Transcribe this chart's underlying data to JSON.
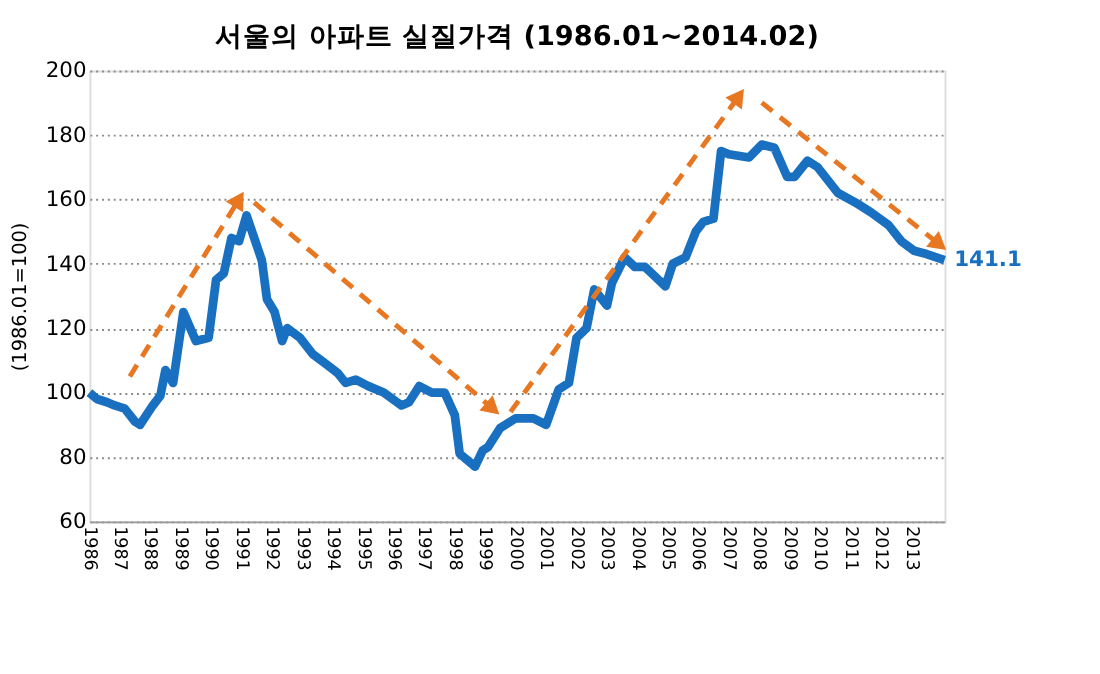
{
  "chart_data": {
    "type": "line",
    "title": "서울의 아파트 실질가격 (1986.01~2014.02)",
    "ylabel": "(1986.01=100)",
    "x": [
      "1986-01",
      "1986-04",
      "1986-08",
      "1986-11",
      "1987-03",
      "1987-07",
      "1987-09",
      "1988-02",
      "1988-05",
      "1988-07",
      "1988-10",
      "1989-02",
      "1989-07",
      "1989-12",
      "1990-03",
      "1990-06",
      "1990-09",
      "1990-12",
      "1991-03",
      "1991-06",
      "1991-09",
      "1991-11",
      "1992-02",
      "1992-05",
      "1992-07",
      "1992-12",
      "1993-05",
      "1993-10",
      "1994-03",
      "1994-06",
      "1994-10",
      "1995-03",
      "1995-09",
      "1996-04",
      "1996-07",
      "1996-11",
      "1997-04",
      "1997-09",
      "1998-01",
      "1998-03",
      "1998-06",
      "1998-09",
      "1998-12",
      "1999-02",
      "1999-07",
      "2000-01",
      "2000-08",
      "2001-01",
      "2001-06",
      "2001-10",
      "2002-01",
      "2002-05",
      "2002-08",
      "2003-01",
      "2003-03",
      "2003-08",
      "2003-12",
      "2004-04",
      "2004-08",
      "2004-12",
      "2005-03",
      "2005-08",
      "2005-12",
      "2006-03",
      "2006-07",
      "2006-10",
      "2007-01",
      "2007-09",
      "2008-02",
      "2008-07",
      "2008-12",
      "2009-03",
      "2009-08",
      "2009-12",
      "2010-08",
      "2011-03",
      "2011-09",
      "2012-04",
      "2012-09",
      "2013-02",
      "2013-07",
      "2014-02"
    ],
    "series": [
      {
        "color": "#1a70c0",
        "values": [
          100,
          98,
          97,
          96,
          95,
          91,
          90,
          96,
          99,
          107,
          103,
          125,
          116,
          117,
          135,
          137,
          148,
          147,
          155,
          148,
          141,
          129,
          125,
          116,
          120,
          117,
          112,
          109,
          106,
          103,
          104,
          102,
          100,
          96,
          97,
          102,
          100,
          100,
          93,
          81,
          79,
          77,
          82,
          83,
          89,
          92,
          92,
          90,
          101,
          103,
          117,
          120,
          132,
          127,
          134,
          142,
          139,
          139,
          136,
          133,
          140,
          142,
          150,
          153,
          154,
          175,
          174,
          173,
          177,
          176,
          167,
          167,
          172,
          170,
          162,
          159,
          156,
          152,
          147,
          144,
          143,
          141.1
        ],
        "value_labels": [
          null,
          null,
          null,
          null,
          null,
          null,
          null,
          null,
          null,
          null,
          null,
          null,
          null,
          null,
          null,
          null,
          null,
          null,
          null,
          null,
          null,
          null,
          null,
          null,
          null,
          null,
          null,
          null,
          null,
          null,
          null,
          null,
          null,
          null,
          null,
          null,
          null,
          null,
          null,
          null,
          null,
          null,
          null,
          null,
          null,
          null,
          null,
          null,
          null,
          null,
          null,
          null,
          null,
          null,
          null,
          null,
          null,
          null,
          null,
          null,
          null,
          null,
          null,
          null,
          null,
          null,
          null,
          null,
          null,
          null,
          null,
          null,
          null,
          null,
          null,
          null,
          null,
          null,
          null,
          null,
          null,
          "141.1"
        ]
      }
    ],
    "xlim": [
      "1986-01",
      "2014-02"
    ],
    "xticks": [
      "1986",
      "1987",
      "1988",
      "1989",
      "1990",
      "1991",
      "1992",
      "1993",
      "1994",
      "1995",
      "1996",
      "1997",
      "1998",
      "1999",
      "2000",
      "2001",
      "2002",
      "2003",
      "2004",
      "2005",
      "2006",
      "2007",
      "2008",
      "2009",
      "2010",
      "2011",
      "2012",
      "2013"
    ],
    "ylim": [
      60,
      200
    ],
    "yticks": [
      60,
      80,
      100,
      120,
      140,
      160,
      180,
      200
    ],
    "grid": "y",
    "marker": "none",
    "line_style": "solid"
  }
}
